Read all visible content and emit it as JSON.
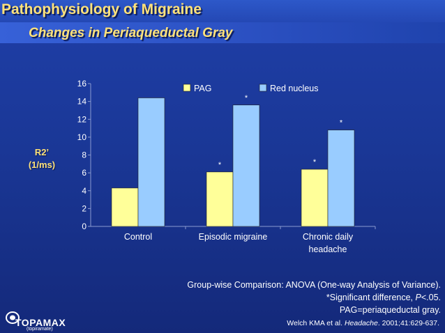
{
  "slide": {
    "title": "Pathophysiology of Migraine",
    "subtitle": "Changes in Periaqueductal Gray"
  },
  "chart_data": {
    "type": "bar",
    "categories": [
      "Control",
      "Episodic migraine",
      "Chronic daily headache"
    ],
    "category_lines": [
      [
        "Control"
      ],
      [
        "Episodic migraine"
      ],
      [
        "Chronic daily",
        "headache"
      ]
    ],
    "series": [
      {
        "name": "PAG",
        "values": [
          4.3,
          6.1,
          6.4
        ],
        "color": "#ffff99",
        "significant": [
          "",
          "*",
          "*"
        ]
      },
      {
        "name": "Red nucleus",
        "values": [
          14.4,
          13.6,
          10.8
        ],
        "color": "#99ccff",
        "significant": [
          "",
          "*",
          "*"
        ]
      }
    ],
    "ylabel_lines": [
      "R2’",
      "(1/ms)"
    ],
    "ylim": [
      0,
      16
    ],
    "yticks": [
      0,
      2,
      4,
      6,
      8,
      10,
      12,
      14,
      16
    ],
    "legend_position": "top-right",
    "grid": false
  },
  "notes": {
    "line1": "Group-wise Comparison: ANOVA (One-way Analysis of Variance).",
    "line2_pre": "*Significant difference, ",
    "line2_italic": "P",
    "line2_post": "<.05.",
    "line3": "PAG=periaqueductal gray."
  },
  "citation": {
    "pre": "Welch KMA et al. ",
    "journal": "Headache",
    "post": ". 2001;41:629-637."
  },
  "logo": {
    "name": "TOPAMAX",
    "sub": "(topiramate)"
  }
}
